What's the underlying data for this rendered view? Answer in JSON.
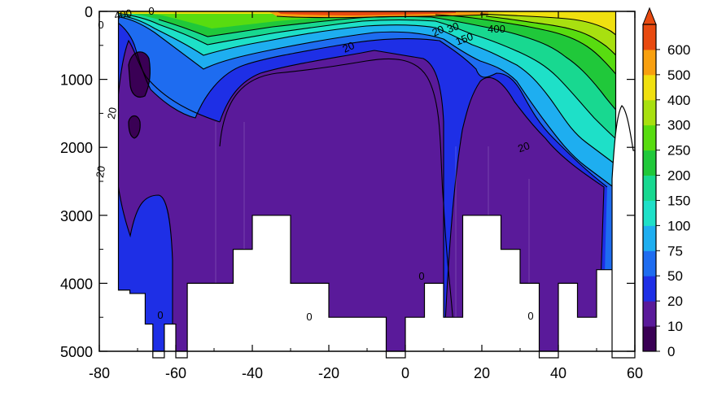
{
  "chart_data": {
    "type": "heatmap",
    "title": "",
    "xlabel": "",
    "ylabel": "",
    "xlim": [
      -80,
      60
    ],
    "ylim": [
      5000,
      0
    ],
    "x_ticks": [
      -80,
      -60,
      -40,
      -20,
      0,
      20,
      40,
      60
    ],
    "y_ticks": [
      0,
      1000,
      2000,
      3000,
      4000,
      5000
    ],
    "colorbar": {
      "levels": [
        0,
        10,
        20,
        50,
        75,
        100,
        150,
        200,
        250,
        300,
        400,
        500,
        600
      ],
      "colors": [
        "#3a0055",
        "#5a1a9a",
        "#1e2fe6",
        "#1e6cf0",
        "#1eaef0",
        "#1ee0c8",
        "#18d890",
        "#20c83a",
        "#58dc10",
        "#a8e010",
        "#f0e010",
        "#f8a010",
        "#e84a10"
      ]
    },
    "contour_labels": [
      "0",
      "20",
      "20",
      "20",
      "20",
      "20",
      "30",
      "150",
      "400",
      "400",
      "0",
      "0",
      "0",
      "0",
      "0"
    ],
    "deep_profile": [
      {
        "lat": -75,
        "ocean": 0,
        "basin": 4100
      },
      {
        "lat": -72,
        "ocean": 2800,
        "basin": 4150
      },
      {
        "lat": -68,
        "ocean": 3300,
        "basin": 4600
      },
      {
        "lat": -66,
        "ocean": 3400,
        "basin": 5100
      },
      {
        "lat": -63,
        "ocean": 3300,
        "basin": 4600
      },
      {
        "lat": -60,
        "ocean": 2900,
        "basin": 5100
      },
      {
        "lat": -57,
        "ocean": 3300,
        "basin": 4000
      },
      {
        "lat": -50,
        "ocean": 3900,
        "basin": 4000
      },
      {
        "lat": -45,
        "ocean": 2300,
        "basin": 3500
      },
      {
        "lat": -40,
        "ocean": 2000,
        "basin": 3000
      },
      {
        "lat": -30,
        "ocean": 1550,
        "basin": 4000
      },
      {
        "lat": -20,
        "ocean": 1300,
        "basin": 4500
      },
      {
        "lat": -10,
        "ocean": 1200,
        "basin": 4500
      },
      {
        "lat": -5,
        "ocean": 1100,
        "basin": 5100
      },
      {
        "lat": 0,
        "ocean": 1150,
        "basin": 4500
      },
      {
        "lat": 5,
        "ocean": 1500,
        "basin": 4000
      },
      {
        "lat": 10,
        "ocean": 2200,
        "basin": 4500
      },
      {
        "lat": 15,
        "ocean": 3000,
        "basin": 3000
      },
      {
        "lat": 20,
        "ocean": 2500,
        "basin": 3000
      },
      {
        "lat": 25,
        "ocean": 1400,
        "basin": 3500
      },
      {
        "lat": 30,
        "ocean": 2000,
        "basin": 4000
      },
      {
        "lat": 35,
        "ocean": 3000,
        "basin": 5100
      },
      {
        "lat": 40,
        "ocean": 3800,
        "basin": 4000
      },
      {
        "lat": 45,
        "ocean": 4300,
        "basin": 4500
      },
      {
        "lat": 50,
        "ocean": 3900,
        "basin": 3800
      },
      {
        "lat": 55,
        "ocean": 1800,
        "basin": 1800
      }
    ]
  }
}
